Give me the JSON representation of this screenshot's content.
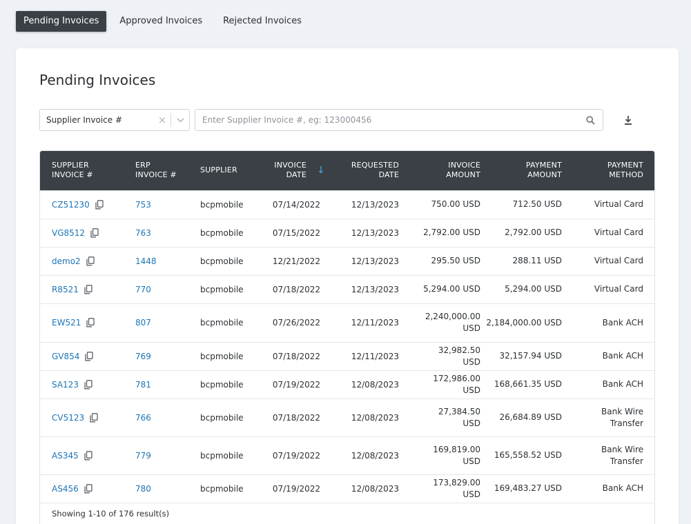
{
  "tabs": [
    {
      "label": "Pending Invoices",
      "active": true
    },
    {
      "label": "Approved Invoices",
      "active": false
    },
    {
      "label": "Rejected Invoices",
      "active": false
    }
  ],
  "page": {
    "title": "Pending Invoices"
  },
  "filter": {
    "selected_field": "Supplier Invoice #",
    "clear_icon": "close-icon",
    "dropdown_icon": "chevron-down-icon"
  },
  "search": {
    "placeholder": "Enter Supplier Invoice #, eg: 123000456",
    "value": "",
    "icon": "search-icon"
  },
  "download": {
    "icon": "download-icon"
  },
  "table": {
    "columns": [
      {
        "label_line1": "Supplier",
        "label_line2": "Invoice #"
      },
      {
        "label_line1": "ERP",
        "label_line2": "Invoice #"
      },
      {
        "label_line1": "Supplier",
        "label_line2": ""
      },
      {
        "label_line1": "Invoice",
        "label_line2": "Date",
        "sorted": "desc"
      },
      {
        "label_line1": "Requested",
        "label_line2": "Date"
      },
      {
        "label_line1": "Invoice",
        "label_line2": "Amount"
      },
      {
        "label_line1": "Payment",
        "label_line2": "Amount"
      },
      {
        "label_line1": "Payment",
        "label_line2": "Method"
      }
    ],
    "rows": [
      {
        "supplier_invoice": "CZ51230",
        "erp_invoice": "753",
        "supplier": "bcpmobile",
        "invoice_date": "07/14/2022",
        "requested_date": "12/13/2023",
        "invoice_amount_num": "750",
        "invoice_amount_rest": ".00 USD",
        "payment_amount_num": "712",
        "payment_amount_rest": ".50 USD",
        "method_line1": "Virtual Card",
        "method_line2": ""
      },
      {
        "supplier_invoice": "VG8512",
        "erp_invoice": "763",
        "supplier": "bcpmobile",
        "invoice_date": "07/15/2022",
        "requested_date": "12/13/2023",
        "invoice_amount_num": "2,792",
        "invoice_amount_rest": ".00 USD",
        "payment_amount_num": "2,792",
        "payment_amount_rest": ".00 USD",
        "method_line1": "Virtual Card",
        "method_line2": ""
      },
      {
        "supplier_invoice": "demo2",
        "erp_invoice": "1448",
        "supplier": "bcpmobile",
        "invoice_date": "12/21/2022",
        "requested_date": "12/13/2023",
        "invoice_amount_num": "295",
        "invoice_amount_rest": ".50 USD",
        "payment_amount_num": "288",
        "payment_amount_rest": ".11 USD",
        "method_line1": "Virtual Card",
        "method_line2": ""
      },
      {
        "supplier_invoice": "R8521",
        "erp_invoice": "770",
        "supplier": "bcpmobile",
        "invoice_date": "07/18/2022",
        "requested_date": "12/13/2023",
        "invoice_amount_num": "5,294",
        "invoice_amount_rest": ".00 USD",
        "payment_amount_num": "5,294",
        "payment_amount_rest": ".00 USD",
        "method_line1": "Virtual Card",
        "method_line2": ""
      },
      {
        "supplier_invoice": "EW521",
        "erp_invoice": "807",
        "supplier": "bcpmobile",
        "invoice_date": "07/26/2022",
        "requested_date": "12/11/2023",
        "invoice_amount_num": "2,240,000",
        "invoice_amount_rest": ".00 USD",
        "payment_amount_num": "2,184,000",
        "payment_amount_rest": ".00 USD",
        "method_line1": "Bank ACH",
        "method_line2": ""
      },
      {
        "supplier_invoice": "GV854",
        "erp_invoice": "769",
        "supplier": "bcpmobile",
        "invoice_date": "07/18/2022",
        "requested_date": "12/11/2023",
        "invoice_amount_num": "32,982",
        "invoice_amount_rest": ".50 USD",
        "payment_amount_num": "32,157",
        "payment_amount_rest": ".94 USD",
        "method_line1": "Bank ACH",
        "method_line2": ""
      },
      {
        "supplier_invoice": "SA123",
        "erp_invoice": "781",
        "supplier": "bcpmobile",
        "invoice_date": "07/19/2022",
        "requested_date": "12/08/2023",
        "invoice_amount_num": "172,986",
        "invoice_amount_rest": ".00 USD",
        "payment_amount_num": "168,661",
        "payment_amount_rest": ".35 USD",
        "method_line1": "Bank ACH",
        "method_line2": ""
      },
      {
        "supplier_invoice": "CV5123",
        "erp_invoice": "766",
        "supplier": "bcpmobile",
        "invoice_date": "07/18/2022",
        "requested_date": "12/08/2023",
        "invoice_amount_num": "27,384",
        "invoice_amount_rest": ".50 USD",
        "payment_amount_num": "26,684",
        "payment_amount_rest": ".89 USD",
        "method_line1": "Bank Wire",
        "method_line2": "Transfer"
      },
      {
        "supplier_invoice": "AS345",
        "erp_invoice": "779",
        "supplier": "bcpmobile",
        "invoice_date": "07/19/2022",
        "requested_date": "12/08/2023",
        "invoice_amount_num": "169,819",
        "invoice_amount_rest": ".00 USD",
        "payment_amount_num": "165,558",
        "payment_amount_rest": ".52 USD",
        "method_line1": "Bank Wire",
        "method_line2": "Transfer"
      },
      {
        "supplier_invoice": "AS456",
        "erp_invoice": "780",
        "supplier": "bcpmobile",
        "invoice_date": "07/19/2022",
        "requested_date": "12/08/2023",
        "invoice_amount_num": "173,829",
        "invoice_amount_rest": ".00 USD",
        "payment_amount_num": "169,483",
        "payment_amount_rest": ".27 USD",
        "method_line1": "Bank ACH",
        "method_line2": ""
      }
    ],
    "footer": "Showing 1-10 of 176 result(s)"
  },
  "colors": {
    "accent": "#1b75b8",
    "header_bg": "#3b4046",
    "page_bg": "#eef1f6",
    "sort_arrow": "#4aa8e0"
  }
}
